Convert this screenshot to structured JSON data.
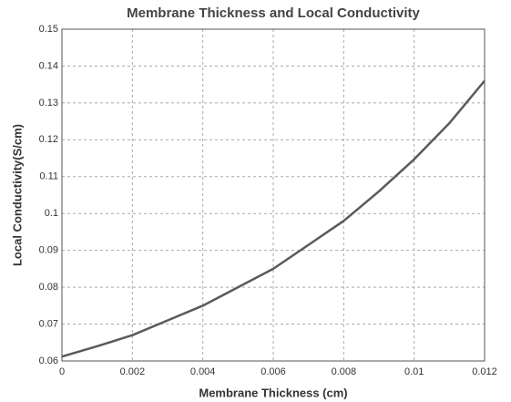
{
  "chart_data": {
    "type": "line",
    "title": "Membrane Thickness and Local Conductivity",
    "xlabel": "Membrane Thickness (cm)",
    "ylabel": "Local Conductivity(S/cm)",
    "x": [
      0,
      0.001,
      0.002,
      0.003,
      0.004,
      0.005,
      0.006,
      0.007,
      0.008,
      0.009,
      0.01,
      0.011,
      0.012
    ],
    "series": [
      {
        "color": "#5a5a5a",
        "values": [
          0.0612,
          0.064,
          0.067,
          0.071,
          0.075,
          0.08,
          0.085,
          0.0915,
          0.098,
          0.106,
          0.1147,
          0.1245,
          0.136
        ]
      }
    ],
    "xlim": [
      0,
      0.012
    ],
    "xticks": [
      0,
      0.002,
      0.004,
      0.006,
      0.008,
      0.01,
      0.012
    ],
    "ylim": [
      0.06,
      0.15
    ],
    "yticks": [
      0.06,
      0.07,
      0.08,
      0.09,
      0.1,
      0.11,
      0.12,
      0.13,
      0.14,
      0.15
    ],
    "grid": true
  }
}
